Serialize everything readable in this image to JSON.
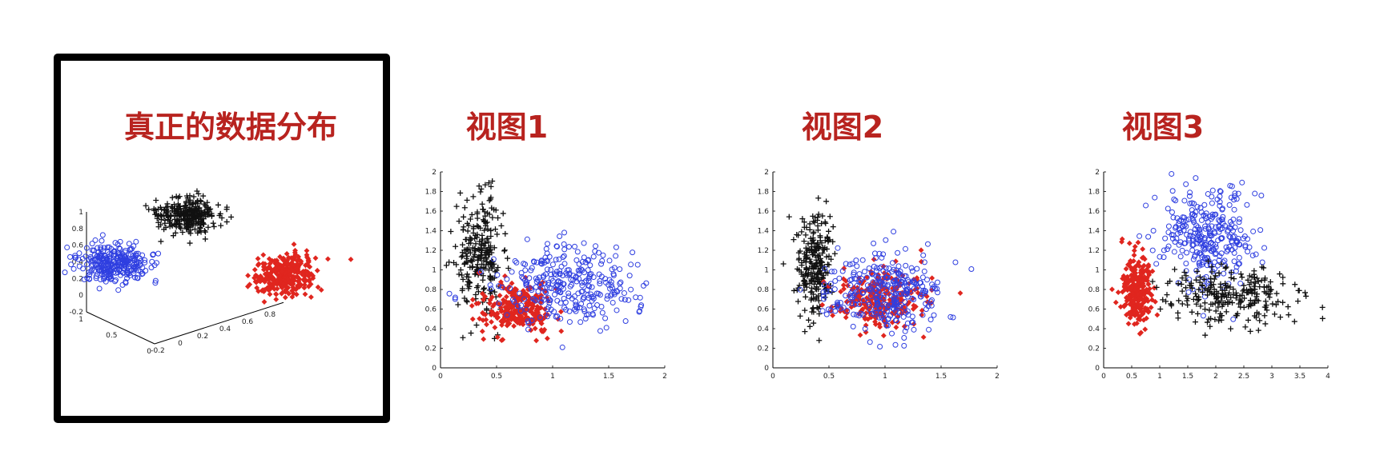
{
  "titles": {
    "true_distribution": "真正的数据分布",
    "view1": "视图1",
    "view2": "视图2",
    "view3": "视图3"
  },
  "colors": {
    "title": "#b8231f",
    "red": "#e0261f",
    "blue": "#2f3fe0",
    "black": "#111111"
  },
  "chart_data": [
    {
      "type": "scatter",
      "title": "真正的数据分布",
      "projection": "3d",
      "zlim": [
        -0.2,
        1
      ],
      "z_ticks": [
        "1",
        "0.8",
        "0.6",
        "0.4",
        "0.2",
        "0",
        "-0.2"
      ],
      "y_ticks": [
        "1",
        "0.5",
        "0"
      ],
      "x_ticks": [
        "-0.2",
        "0",
        "0.2",
        "0.4",
        "0.6",
        "0.8"
      ],
      "series": [
        {
          "marker": "circle",
          "color": "blue",
          "center": [
            0,
            0.7,
            0.15
          ],
          "n": 300
        },
        {
          "marker": "plus",
          "color": "black",
          "center": [
            0,
            0,
            0.65
          ],
          "n": 300
        },
        {
          "marker": "diamond",
          "color": "red",
          "center": [
            0.7,
            0,
            0.0
          ],
          "n": 300
        }
      ]
    },
    {
      "type": "scatter",
      "title": "视图1",
      "xlim": [
        0,
        2
      ],
      "ylim": [
        0,
        2
      ],
      "x_ticks": [
        "0",
        "0.5",
        "1",
        "1.5",
        "2"
      ],
      "y_ticks": [
        "0",
        "0.2",
        "0.4",
        "0.6",
        "0.8",
        "1",
        "1.2",
        "1.4",
        "1.6",
        "1.8",
        "2"
      ],
      "series": [
        {
          "marker": "plus",
          "color": "black",
          "center": [
            0.35,
            1.15
          ],
          "spread": [
            0.1,
            0.3
          ],
          "n": 250
        },
        {
          "marker": "diamond",
          "color": "red",
          "center": [
            0.7,
            0.6
          ],
          "spread": [
            0.15,
            0.13
          ],
          "n": 250
        },
        {
          "marker": "circle",
          "color": "blue",
          "center": [
            1.15,
            0.85
          ],
          "spread": [
            0.3,
            0.2
          ],
          "n": 300
        }
      ]
    },
    {
      "type": "scatter",
      "title": "视图2",
      "xlim": [
        0,
        2
      ],
      "ylim": [
        0,
        2
      ],
      "x_ticks": [
        "0",
        "0.5",
        "1",
        "1.5",
        "2"
      ],
      "y_ticks": [
        "0",
        "0.2",
        "0.4",
        "0.6",
        "0.8",
        "1",
        "1.2",
        "1.4",
        "1.6",
        "1.8",
        "2"
      ],
      "series": [
        {
          "marker": "plus",
          "color": "black",
          "center": [
            0.38,
            1.05
          ],
          "spread": [
            0.08,
            0.25
          ],
          "n": 250
        },
        {
          "marker": "diamond",
          "color": "red",
          "center": [
            0.95,
            0.7
          ],
          "spread": [
            0.2,
            0.15
          ],
          "n": 250
        },
        {
          "marker": "circle",
          "color": "blue",
          "center": [
            1.0,
            0.8
          ],
          "spread": [
            0.25,
            0.2
          ],
          "n": 300
        }
      ]
    },
    {
      "type": "scatter",
      "title": "视图3",
      "xlim": [
        0,
        4
      ],
      "ylim": [
        0,
        2
      ],
      "x_ticks": [
        "0",
        "0.5",
        "1",
        "1.5",
        "2",
        "2.5",
        "3",
        "3.5",
        "4"
      ],
      "y_ticks": [
        "0",
        "0.2",
        "0.4",
        "0.6",
        "0.8",
        "1",
        "1.2",
        "1.4",
        "1.6",
        "1.8",
        "2"
      ],
      "series": [
        {
          "marker": "diamond",
          "color": "red",
          "center": [
            0.6,
            0.8
          ],
          "spread": [
            0.15,
            0.2
          ],
          "n": 250
        },
        {
          "marker": "circle",
          "color": "blue",
          "center": [
            1.8,
            1.35
          ],
          "spread": [
            0.4,
            0.25
          ],
          "n": 300
        },
        {
          "marker": "plus",
          "color": "black",
          "center": [
            2.3,
            0.75
          ],
          "spread": [
            0.6,
            0.15
          ],
          "n": 250
        }
      ]
    }
  ]
}
